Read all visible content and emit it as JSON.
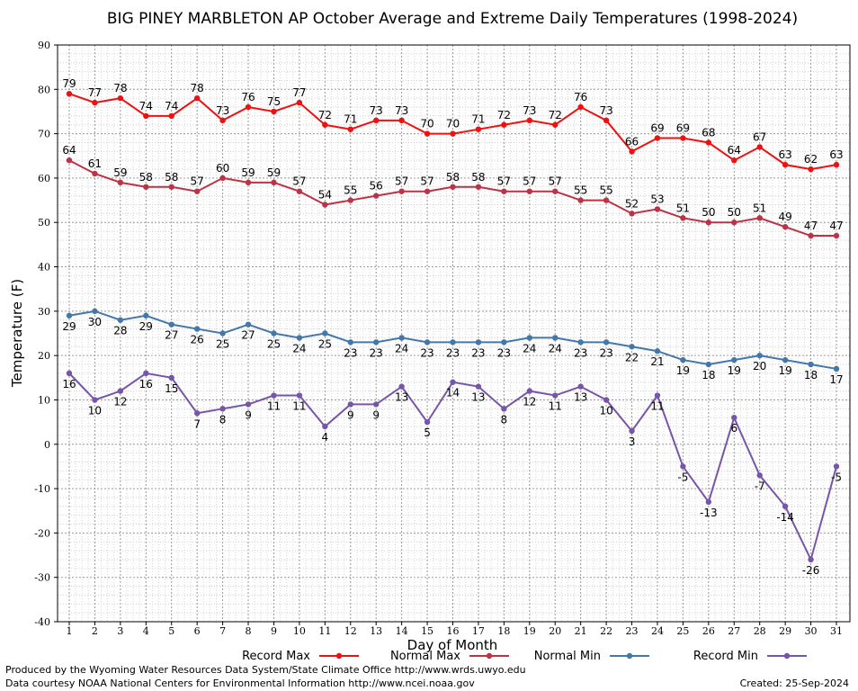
{
  "chart_data": {
    "type": "line",
    "title": "BIG PINEY MARBLETON AP October Average and Extreme Daily Temperatures (1998-2024)",
    "xlabel": "Day of Month",
    "ylabel": "Temperature (F)",
    "ylim": [
      -40,
      90
    ],
    "yticks": [
      "-40",
      "-30",
      "-20",
      "-10",
      "0",
      "10",
      "20",
      "30",
      "40",
      "50",
      "60",
      "70",
      "80",
      "90"
    ],
    "x": [
      1,
      2,
      3,
      4,
      5,
      6,
      7,
      8,
      9,
      10,
      11,
      12,
      13,
      14,
      15,
      16,
      17,
      18,
      19,
      20,
      21,
      22,
      23,
      24,
      25,
      26,
      27,
      28,
      29,
      30,
      31
    ],
    "grid": true,
    "legend_placement": "bottom",
    "series": [
      {
        "name": "Record Max",
        "color": "#ee1111",
        "label_pos": "above",
        "values": [
          79,
          77,
          78,
          74,
          74,
          78,
          73,
          76,
          75,
          77,
          72,
          71,
          73,
          73,
          70,
          70,
          71,
          72,
          73,
          72,
          76,
          73,
          66,
          69,
          69,
          68,
          64,
          67,
          63,
          62,
          63
        ]
      },
      {
        "name": "Normal Max",
        "color": "#bb3344",
        "label_pos": "above",
        "values": [
          64,
          61,
          59,
          58,
          58,
          57,
          60,
          59,
          59,
          57,
          54,
          55,
          56,
          57,
          57,
          58,
          58,
          57,
          57,
          57,
          55,
          55,
          52,
          53,
          51,
          50,
          50,
          51,
          49,
          47,
          47
        ]
      },
      {
        "name": "Normal Min",
        "color": "#4477aa",
        "label_pos": "below",
        "values": [
          29,
          30,
          28,
          29,
          27,
          26,
          25,
          27,
          25,
          24,
          25,
          23,
          23,
          24,
          23,
          23,
          23,
          23,
          24,
          24,
          23,
          23,
          22,
          21,
          19,
          18,
          19,
          20,
          19,
          18,
          17
        ]
      },
      {
        "name": "Record Min",
        "color": "#7755aa",
        "label_pos": "below",
        "values": [
          16,
          10,
          12,
          16,
          15,
          7,
          8,
          9,
          11,
          11,
          4,
          9,
          9,
          13,
          5,
          14,
          13,
          8,
          12,
          11,
          13,
          10,
          3,
          11,
          -5,
          -13,
          6,
          -7,
          -14,
          -26,
          -5
        ]
      }
    ]
  },
  "footer": {
    "produced_by": "Produced by the Wyoming Water Resources Data System/State Climate Office http://www.wrds.uwyo.edu",
    "data_courtesy": "Data courtesy NOAA National Centers for Environmental Information http://www.ncei.noaa.gov",
    "created": "Created:  25-Sep-2024"
  }
}
